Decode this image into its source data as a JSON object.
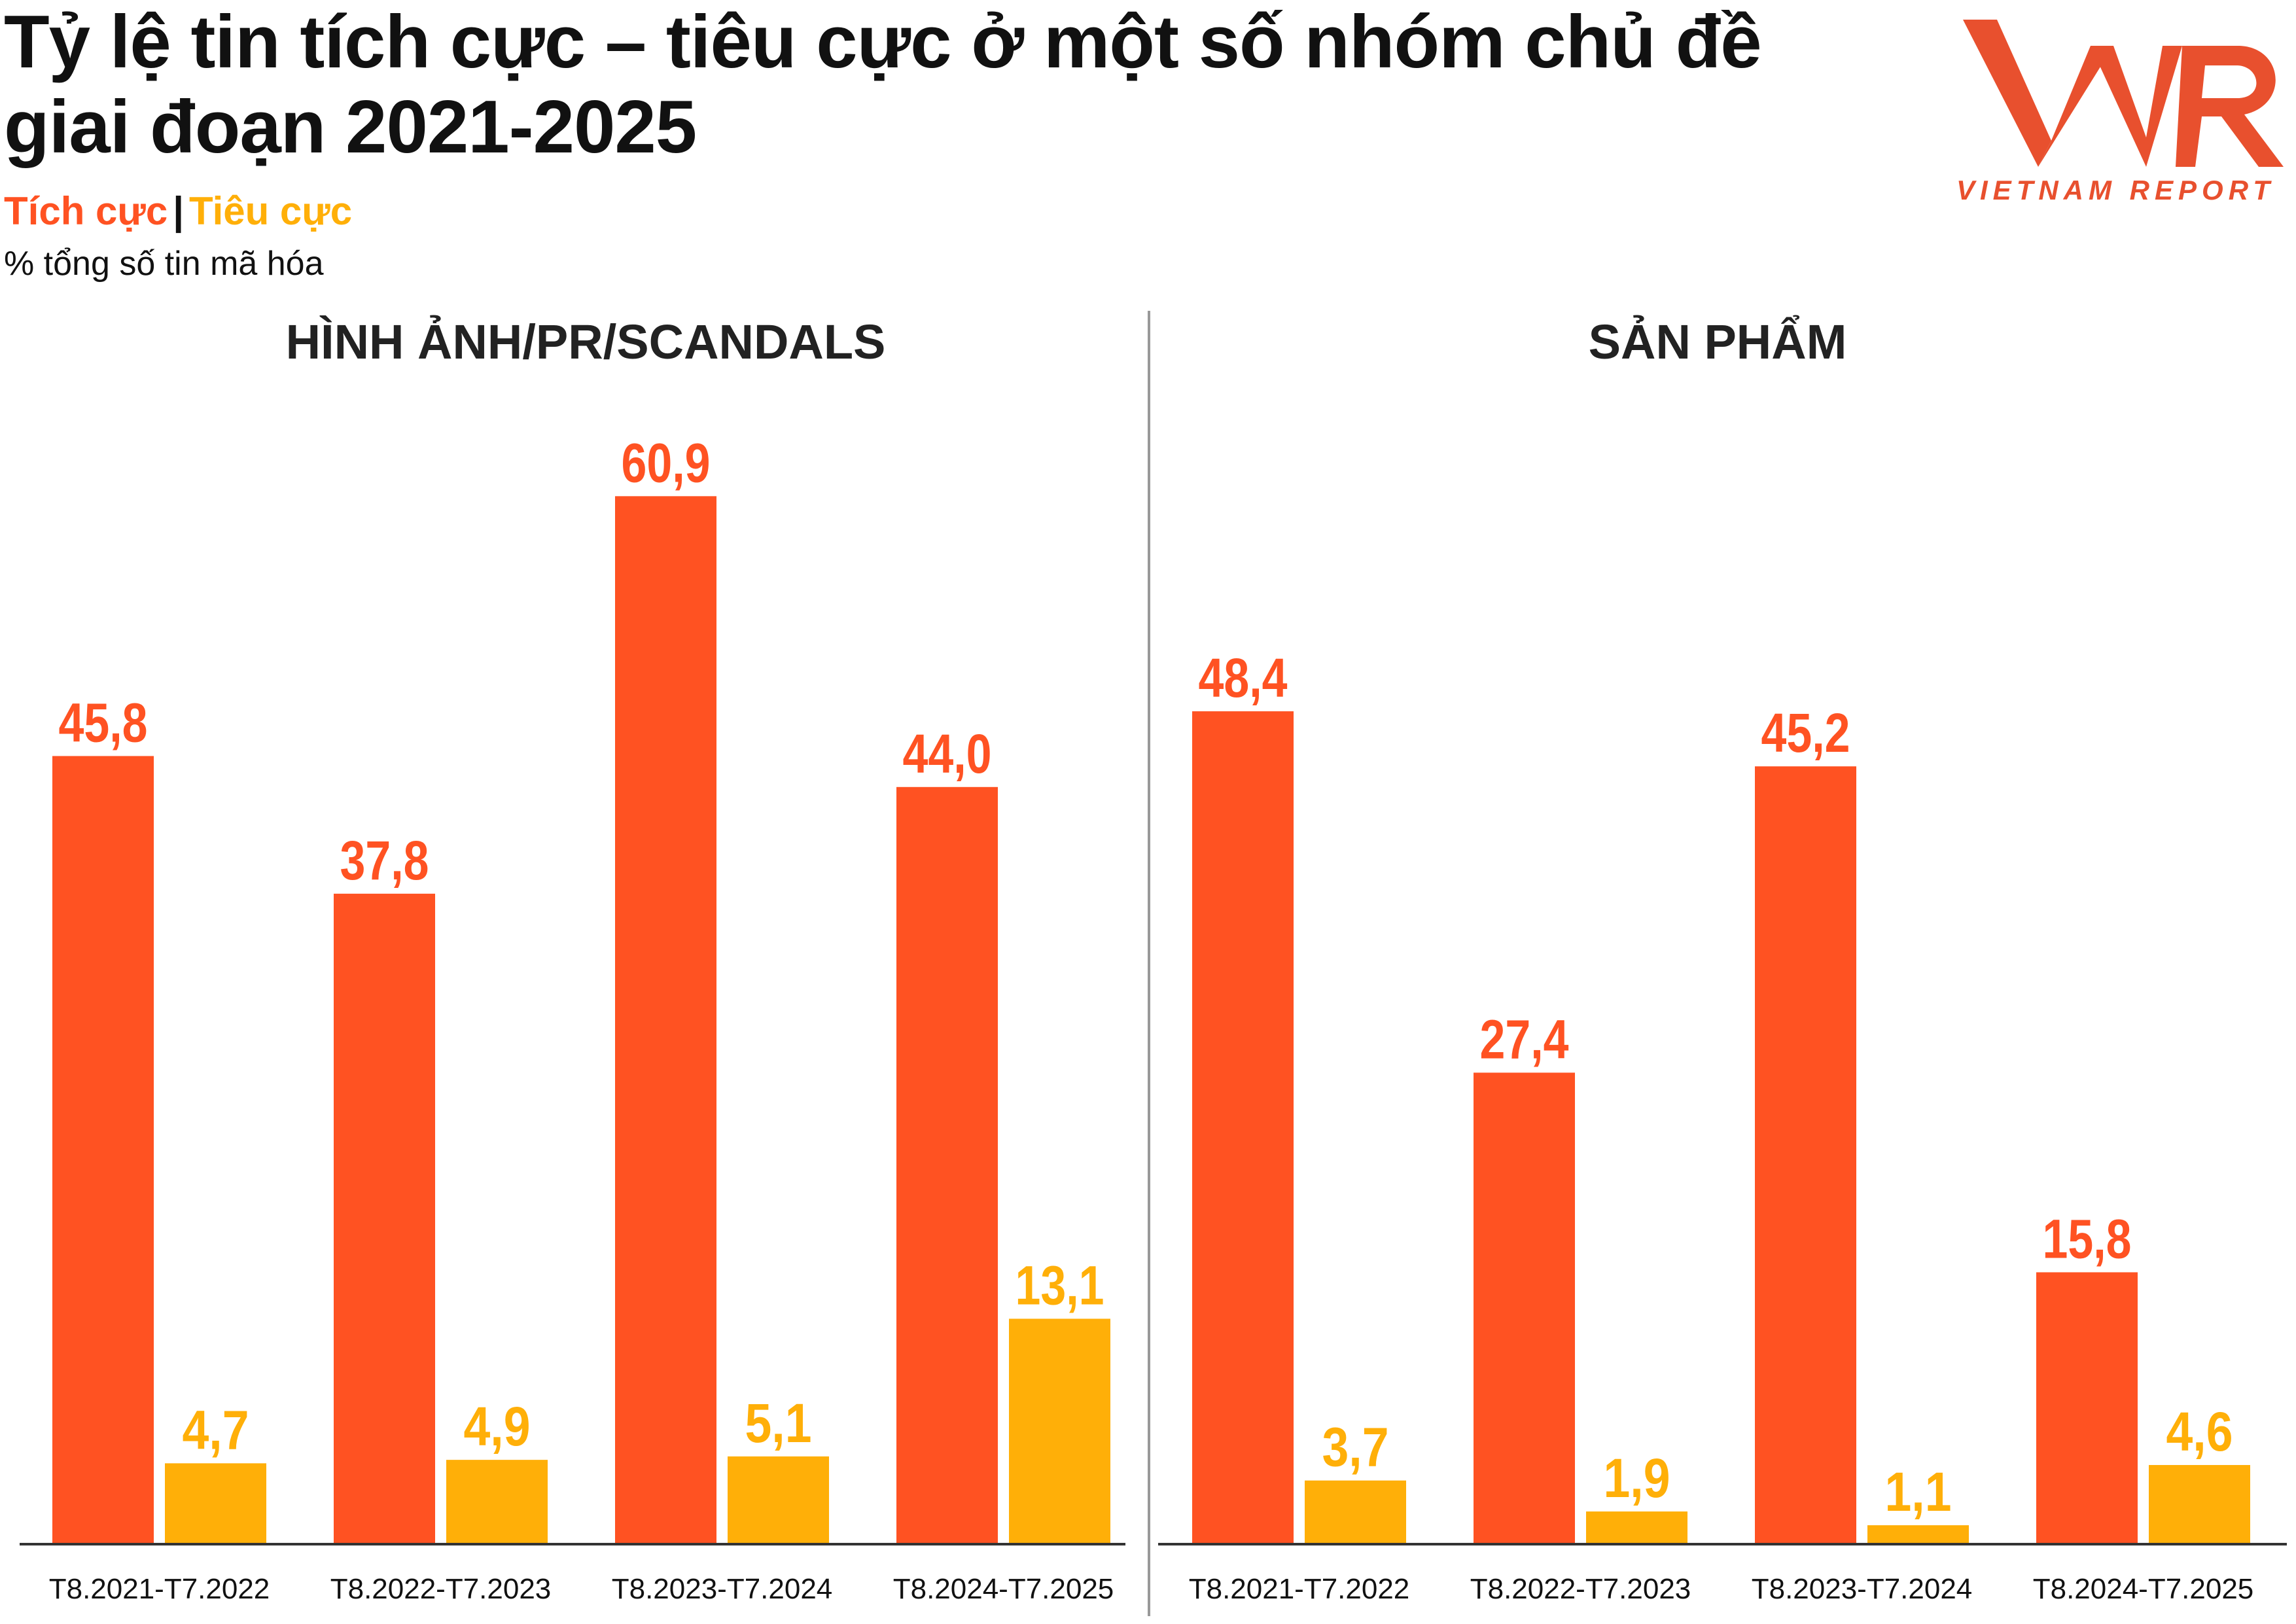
{
  "header": {
    "title": "Tỷ lệ tin tích cực – tiêu cực ở một số nhóm chủ đề giai đoạn 2021-2025",
    "legend_positive": "Tích cực",
    "legend_separator": "|",
    "legend_negative": "Tiêu cực",
    "unit": "% tổng số tin mã hóa"
  },
  "logo": {
    "mark": "VNR",
    "text": "VIETNAM REPORT",
    "icon": "vnr-logo-icon"
  },
  "colors": {
    "positive": "#FF5222",
    "negative": "#FFAF08",
    "axis": "#333333",
    "divider": "#999999"
  },
  "chart_data": [
    {
      "type": "bar",
      "title": "HÌNH ẢNH/PR/SCANDALS",
      "categories": [
        "T8.2021-T7.2022",
        "T8.2022-T7.2023",
        "T8.2023-T7.2024",
        "T8.2024-T7.2025"
      ],
      "series": [
        {
          "name": "Tích cực",
          "values": [
            45.8,
            37.8,
            60.9,
            44.0
          ],
          "labels": [
            "45,8",
            "37,8",
            "60,9",
            "44,0"
          ]
        },
        {
          "name": "Tiêu cực",
          "values": [
            4.7,
            4.9,
            5.1,
            13.1
          ],
          "labels": [
            "4,7",
            "4,9",
            "5,1",
            "13,1"
          ]
        }
      ],
      "ylim": [
        0,
        70
      ],
      "grid": false
    },
    {
      "type": "bar",
      "title": "SẢN PHẨM",
      "categories": [
        "T8.2021-T7.2022",
        "T8.2022-T7.2023",
        "T8.2023-T7.2024",
        "T8.2024-T7.2025"
      ],
      "series": [
        {
          "name": "Tích cực",
          "values": [
            48.4,
            27.4,
            45.2,
            15.8
          ],
          "labels": [
            "48,4",
            "27,4",
            "45,2",
            "15,8"
          ]
        },
        {
          "name": "Tiêu cực",
          "values": [
            3.7,
            1.9,
            1.1,
            4.6
          ],
          "labels": [
            "3,7",
            "1,9",
            "1,1",
            "4,6"
          ]
        }
      ],
      "ylim": [
        0,
        70
      ],
      "grid": false
    }
  ]
}
